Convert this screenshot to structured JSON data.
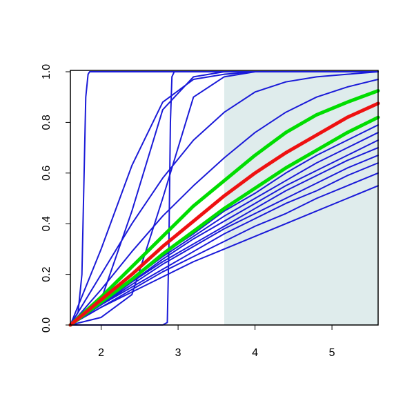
{
  "chart_data": {
    "type": "line",
    "x": [
      1.6,
      2,
      2.4,
      2.8,
      3.2,
      3.6,
      4,
      4.4,
      4.8,
      5.2,
      5.6
    ],
    "xlim": [
      1.6,
      5.6
    ],
    "ylim": [
      0,
      1
    ],
    "xticks": [
      2,
      3,
      4,
      5
    ],
    "yticks": [
      {
        "value": 0,
        "label": "0.0"
      },
      0.2,
      0.4,
      0.6,
      0.8,
      {
        "value": 1,
        "label": "1.0"
      }
    ],
    "grid": false,
    "shaded_region": {
      "xlim": [
        3.6,
        5.6
      ],
      "color": "#dfecec"
    },
    "series": [
      {
        "color": "#1a1ad8",
        "line_width": 2,
        "values": [
          0,
          0.07,
          0.13,
          0.19,
          0.25,
          0.3,
          0.35,
          0.4,
          0.45,
          0.5,
          0.55
        ]
      },
      {
        "color": "#1a1ad8",
        "line_width": 2,
        "values": [
          0,
          0.07,
          0.14,
          0.21,
          0.27,
          0.33,
          0.39,
          0.44,
          0.5,
          0.55,
          0.6
        ]
      },
      {
        "color": "#1a1ad8",
        "line_width": 2,
        "values": [
          0,
          0.08,
          0.15,
          0.22,
          0.29,
          0.36,
          0.42,
          0.48,
          0.53,
          0.59,
          0.64
        ]
      },
      {
        "color": "#1a1ad8",
        "line_width": 2,
        "values": [
          0,
          0.08,
          0.16,
          0.24,
          0.31,
          0.38,
          0.44,
          0.5,
          0.56,
          0.62,
          0.67
        ]
      },
      {
        "color": "#1a1ad8",
        "line_width": 2,
        "values": [
          0,
          0.08,
          0.17,
          0.25,
          0.32,
          0.39,
          0.46,
          0.53,
          0.59,
          0.65,
          0.7
        ]
      },
      {
        "color": "#1a1ad8",
        "line_width": 2,
        "values": [
          0,
          0.09,
          0.17,
          0.26,
          0.34,
          0.41,
          0.48,
          0.55,
          0.61,
          0.67,
          0.73
        ]
      },
      {
        "color": "#1a1ad8",
        "line_width": 2,
        "values": [
          0,
          0.09,
          0.18,
          0.27,
          0.35,
          0.43,
          0.5,
          0.57,
          0.64,
          0.7,
          0.76
        ]
      },
      {
        "color": "#1a1ad8",
        "line_width": 2,
        "values": [
          0,
          0.09,
          0.18,
          0.28,
          0.36,
          0.45,
          0.52,
          0.6,
          0.67,
          0.73,
          0.79
        ]
      },
      {
        "color": "#1a1ad8",
        "line_width": 2,
        "values": [
          0,
          0.14,
          0.29,
          0.43,
          0.55,
          0.66,
          0.76,
          0.84,
          0.9,
          0.94,
          0.97
        ]
      },
      {
        "color": "#1a1ad8",
        "line_width": 2,
        "values": [
          0,
          0.2,
          0.4,
          0.58,
          0.73,
          0.84,
          0.92,
          0.96,
          0.98,
          0.99,
          1
        ]
      },
      {
        "color": "#1a1ad8",
        "line_width": 2,
        "values": [
          0,
          0.3,
          0.63,
          0.88,
          0.97,
          0.99,
          1,
          1,
          1,
          1,
          1
        ]
      },
      {
        "color": "#1a1ad8",
        "line_width": 2,
        "values": [
          0,
          0.1,
          0.45,
          0.85,
          0.98,
          1,
          1,
          1,
          1,
          1,
          1
        ]
      },
      {
        "color": "#1a1ad8",
        "line_width": 2,
        "values": [
          0,
          0.03,
          0.12,
          0.5,
          0.9,
          0.98,
          1,
          1,
          1,
          1,
          1
        ]
      },
      {
        "color": "#1a1ad8",
        "line_width": 2,
        "x": [
          1.6,
          1.7,
          1.75,
          1.8,
          1.83,
          1.85,
          2,
          5.6
        ],
        "values": [
          0,
          0.05,
          0.2,
          0.9,
          0.99,
          1,
          1,
          1
        ]
      },
      {
        "color": "#1a1ad8",
        "line_width": 2,
        "x": [
          1.6,
          2.8,
          2.86,
          2.88,
          2.9,
          2.92,
          2.95,
          5.6
        ],
        "values": [
          0,
          0,
          0.01,
          0.3,
          0.8,
          0.98,
          1,
          1
        ]
      },
      {
        "color": "#00dd00",
        "line_width": 5,
        "values": [
          0,
          0.11,
          0.23,
          0.35,
          0.47,
          0.57,
          0.67,
          0.76,
          0.83,
          0.88,
          0.925
        ]
      },
      {
        "color": "#00dd00",
        "line_width": 5,
        "values": [
          0,
          0.09,
          0.18,
          0.28,
          0.37,
          0.46,
          0.54,
          0.62,
          0.69,
          0.76,
          0.82
        ]
      },
      {
        "color": "#ee1111",
        "line_width": 5,
        "values": [
          0,
          0.1,
          0.2,
          0.31,
          0.41,
          0.51,
          0.6,
          0.68,
          0.75,
          0.82,
          0.875
        ]
      }
    ]
  }
}
